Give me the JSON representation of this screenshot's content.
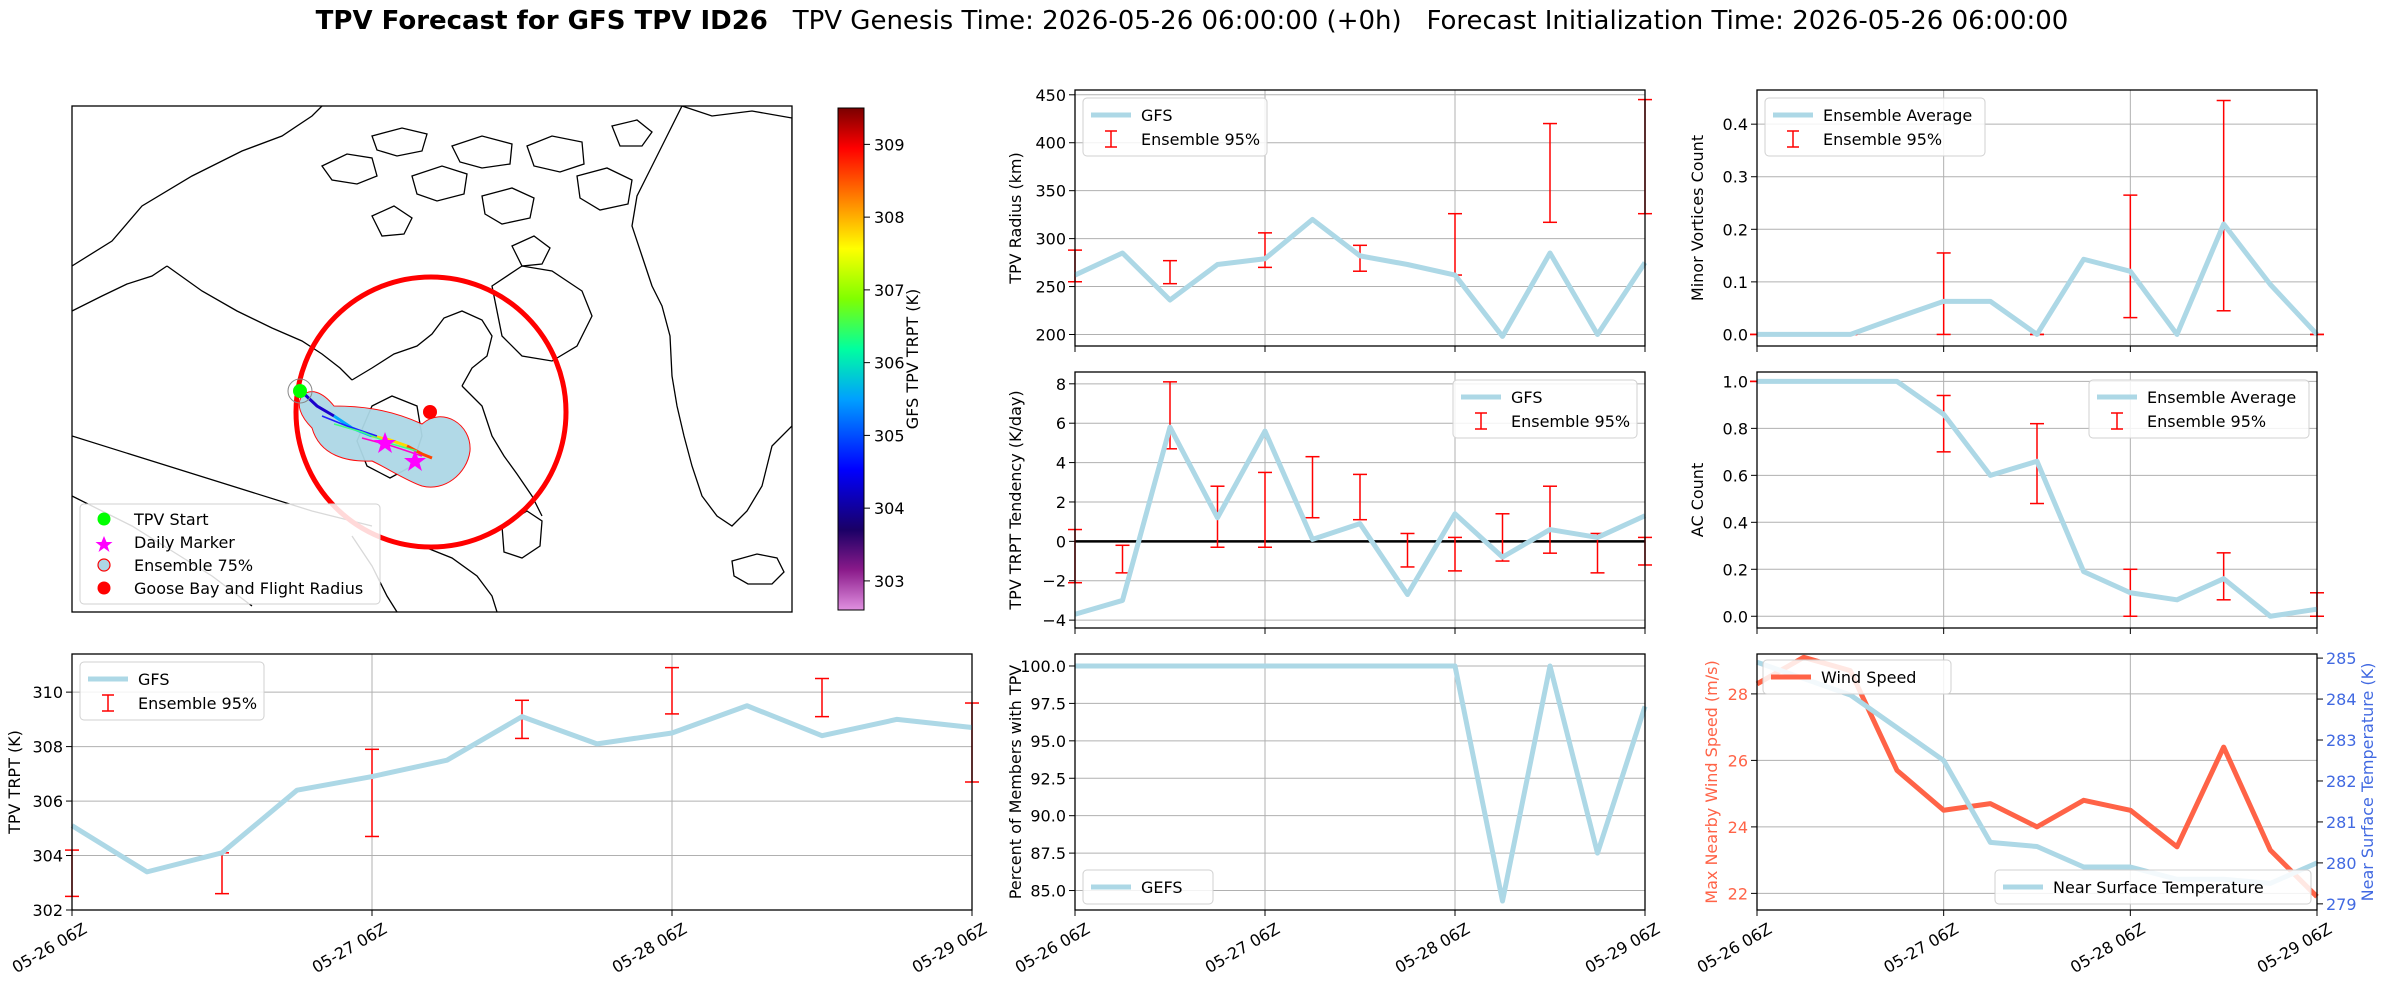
{
  "title": {
    "bold": "TPV Forecast for GFS TPV ID26",
    "genesis": "TPV Genesis Time: 2026-05-26 06:00:00 (+0h)",
    "init": "Forecast Initialization Time: 2026-05-26 06:00:00"
  },
  "colors": {
    "gfs_line": "#add8e6",
    "error_bar": "#ff0000",
    "wind_line": "#ff6347",
    "temp_axis": "#4169e1",
    "ellipse_fill": "#add8e6"
  },
  "map": {
    "legend": [
      "TPV Start",
      "Daily Marker",
      "Ensemble 75%",
      "Goose Bay and Flight Radius"
    ],
    "colorbar": {
      "label": "GFS TPV TRPT (K)",
      "min": 302.6,
      "max": 309.5,
      "ticks": [
        "303",
        "304",
        "305",
        "306",
        "307",
        "308",
        "309"
      ]
    }
  },
  "chart_data": [
    {
      "id": "radius",
      "type": "line",
      "ylabel": "TPV Radius (km)",
      "ylim": [
        188,
        455
      ],
      "yticks": [
        "200",
        "250",
        "300",
        "350",
        "400",
        "450"
      ],
      "x": [
        0,
        1,
        2,
        3,
        4,
        5,
        6,
        7,
        8,
        9,
        10,
        11,
        12
      ],
      "series": [
        {
          "name": "GFS",
          "values": [
            262,
            285,
            236,
            273,
            279,
            320,
            282,
            273,
            262,
            198,
            285,
            200,
            275
          ]
        }
      ],
      "errorbars": {
        "name": "Ensemble 95%",
        "x": [
          0,
          2,
          4,
          6,
          8,
          10,
          12
        ],
        "low": [
          255,
          253,
          270,
          266,
          262,
          317,
          326
        ],
        "high": [
          288,
          277,
          306,
          293,
          326,
          420,
          445
        ]
      },
      "legend": [
        "GFS",
        "Ensemble 95%"
      ]
    },
    {
      "id": "minor",
      "type": "line",
      "ylabel": "Minor Vortices Count",
      "ylim": [
        -0.022,
        0.465
      ],
      "yticks": [
        "0.0",
        "0.1",
        "0.2",
        "0.3",
        "0.4"
      ],
      "x": [
        0,
        1,
        2,
        3,
        4,
        5,
        6,
        7,
        8,
        9,
        10,
        11,
        12
      ],
      "series": [
        {
          "name": "Ensemble Average",
          "values": [
            0.0,
            0.0,
            0.0,
            0.032,
            0.063,
            0.063,
            0.0,
            0.143,
            0.12,
            0.0,
            0.21,
            0.095,
            0.0
          ]
        }
      ],
      "errorbars": {
        "name": "Ensemble 95%",
        "x": [
          0,
          2,
          4,
          6,
          8,
          10,
          12
        ],
        "low": [
          0,
          0,
          0,
          0,
          0.032,
          0.045,
          0
        ],
        "high": [
          0,
          0,
          0.155,
          0,
          0.265,
          0.445,
          0
        ]
      },
      "legend": [
        "Ensemble Average",
        "Ensemble 95%"
      ]
    },
    {
      "id": "tendency",
      "type": "line",
      "ylabel": "TPV TRPT Tendency (K/day)",
      "ylim": [
        -4.4,
        8.6
      ],
      "yticks": [
        "−4",
        "−2",
        "0",
        "2",
        "4",
        "6",
        "8"
      ],
      "x": [
        0,
        1,
        2,
        3,
        4,
        5,
        6,
        7,
        8,
        9,
        10,
        11,
        12
      ],
      "series": [
        {
          "name": "GFS",
          "values": [
            -3.7,
            -3.0,
            5.8,
            1.2,
            5.6,
            0.1,
            0.9,
            -2.7,
            1.4,
            -0.8,
            0.6,
            0.2,
            1.3
          ]
        }
      ],
      "errorbars": {
        "name": "Ensemble 95%",
        "x": [
          0,
          1,
          2,
          3,
          4,
          5,
          6,
          7,
          8,
          9,
          10,
          11,
          12
        ],
        "low": [
          -2.1,
          -1.6,
          4.7,
          -0.3,
          -0.3,
          1.2,
          1.1,
          -1.3,
          -1.5,
          -1.0,
          -0.6,
          -1.6,
          -1.2
        ],
        "high": [
          0.6,
          -0.2,
          8.1,
          2.8,
          3.5,
          4.3,
          3.4,
          0.4,
          0.2,
          1.4,
          2.8,
          0.4,
          0.2
        ]
      },
      "zero_line": true,
      "legend": [
        "GFS",
        "Ensemble 95%"
      ]
    },
    {
      "id": "ac",
      "type": "line",
      "ylabel": "AC Count",
      "ylim": [
        -0.05,
        1.04
      ],
      "yticks": [
        "0.0",
        "0.2",
        "0.4",
        "0.6",
        "0.8",
        "1.0"
      ],
      "x": [
        0,
        1,
        2,
        3,
        4,
        5,
        6,
        7,
        8,
        9,
        10,
        11,
        12
      ],
      "series": [
        {
          "name": "Ensemble Average",
          "values": [
            1.0,
            1.0,
            1.0,
            1.0,
            0.86,
            0.6,
            0.66,
            0.19,
            0.1,
            0.07,
            0.16,
            0.0,
            0.03
          ]
        }
      ],
      "errorbars": {
        "name": "Ensemble 95%",
        "x": [
          0,
          2,
          4,
          6,
          8,
          10,
          12
        ],
        "low": [
          1.0,
          1.0,
          0.7,
          0.48,
          0.0,
          0.07,
          0.0
        ],
        "high": [
          1.0,
          1.0,
          0.94,
          0.82,
          0.2,
          0.27,
          0.1
        ]
      },
      "legend": [
        "Ensemble Average",
        "Ensemble 95%"
      ]
    },
    {
      "id": "trpt",
      "type": "line",
      "ylabel": "TPV TRPT (K)",
      "ylim": [
        302.0,
        311.4
      ],
      "yticks": [
        "302",
        "304",
        "306",
        "308",
        "310"
      ],
      "xticks": [
        "05-26 06Z",
        "05-27 06Z",
        "05-28 06Z",
        "05-29 06Z"
      ],
      "x": [
        0,
        1,
        2,
        3,
        4,
        5,
        6,
        7,
        8,
        9,
        10,
        11,
        12
      ],
      "series": [
        {
          "name": "GFS",
          "values": [
            305.1,
            303.4,
            304.1,
            306.4,
            306.9,
            307.5,
            309.1,
            308.1,
            308.5,
            309.5,
            308.4,
            309.0,
            308.7
          ]
        }
      ],
      "errorbars": {
        "name": "Ensemble 95%",
        "x": [
          0,
          2,
          4,
          6,
          8,
          10,
          12
        ],
        "low": [
          302.5,
          302.6,
          304.7,
          308.3,
          309.2,
          309.1,
          306.7
        ],
        "high": [
          304.2,
          304.1,
          307.9,
          309.7,
          310.9,
          310.5,
          309.6
        ]
      },
      "legend": [
        "GFS",
        "Ensemble 95%"
      ]
    },
    {
      "id": "percent",
      "type": "line",
      "ylabel": "Percent of Members with TPV",
      "ylim": [
        83.7,
        100.8
      ],
      "yticks": [
        "85.0",
        "87.5",
        "90.0",
        "92.5",
        "95.0",
        "97.5",
        "100.0"
      ],
      "xticks": [
        "05-26 06Z",
        "05-27 06Z",
        "05-28 06Z",
        "05-29 06Z"
      ],
      "x": [
        0,
        1,
        2,
        3,
        4,
        5,
        6,
        7,
        8,
        9,
        10,
        11,
        12
      ],
      "series": [
        {
          "name": "GEFS",
          "values": [
            100,
            100,
            100,
            100,
            100,
            100,
            100,
            100,
            100,
            84.3,
            100,
            87.5,
            97.3
          ]
        }
      ],
      "legend": [
        "GEFS"
      ]
    },
    {
      "id": "wind_temp",
      "type": "line",
      "ylabel": "Max Nearby Wind Speed (m/s)",
      "ylabel_right": "Near Surface Temperature (K)",
      "ylim": [
        21.5,
        29.2
      ],
      "yticks": [
        "22",
        "24",
        "26",
        "28"
      ],
      "ylim_right": [
        278.85,
        285.1
      ],
      "yticks_right": [
        "279",
        "280",
        "281",
        "282",
        "283",
        "284",
        "285"
      ],
      "xticks": [
        "05-26 06Z",
        "05-27 06Z",
        "05-28 06Z",
        "05-29 06Z"
      ],
      "x": [
        0,
        1,
        2,
        3,
        4,
        5,
        6,
        7,
        8,
        9,
        10,
        11,
        12
      ],
      "series": [
        {
          "name": "Wind Speed",
          "axis": "left",
          "values": [
            28.3,
            29.1,
            28.7,
            25.7,
            24.5,
            24.7,
            24.0,
            24.8,
            24.5,
            23.4,
            26.4,
            23.3,
            21.9
          ]
        },
        {
          "name": "Near Surface Temperature",
          "axis": "right",
          "values": [
            284.9,
            284.5,
            284.1,
            283.3,
            282.5,
            280.5,
            280.4,
            279.9,
            279.9,
            279.6,
            279.6,
            279.5,
            280.0
          ]
        }
      ],
      "legend": [
        "Wind Speed",
        "Near Surface Temperature"
      ]
    }
  ]
}
